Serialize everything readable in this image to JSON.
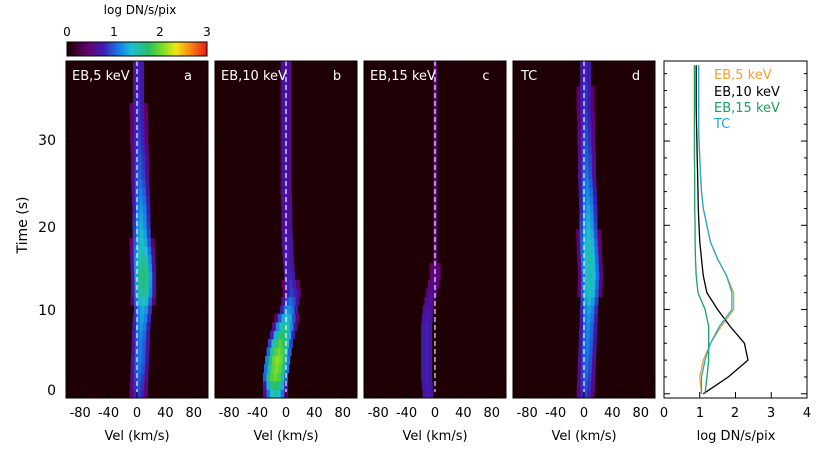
{
  "colorbar": {
    "label": "log DN/s/pix",
    "ticks": [
      "0",
      "1",
      "2",
      "3"
    ],
    "range": [
      0,
      3
    ]
  },
  "y_axis": {
    "label": "Time (s)",
    "ticks": [
      "0",
      "10",
      "20",
      "30"
    ],
    "range": [
      -0.5,
      39.5
    ]
  },
  "panels": [
    {
      "id": "a",
      "title": "EB,5 keV",
      "letter": "a",
      "xlabel": "Vel (km/s)"
    },
    {
      "id": "b",
      "title": "EB,10 keV",
      "letter": "b",
      "xlabel": "Vel (km/s)"
    },
    {
      "id": "c",
      "title": "EB,15 keV",
      "letter": "c",
      "xlabel": "Vel (km/s)"
    },
    {
      "id": "d",
      "title": "TC",
      "letter": "d",
      "xlabel": "Vel (km/s)"
    }
  ],
  "vel_ticks": [
    "-80",
    "-40",
    "0",
    "40",
    "80"
  ],
  "vel_range": [
    -100,
    100
  ],
  "line_panel": {
    "xlabel": "log DN/s/pix",
    "xticks": [
      "0",
      "1",
      "2",
      "3",
      "4"
    ],
    "xrange": [
      0,
      4
    ],
    "legend": [
      {
        "name": "EB,5 keV",
        "color": "#f0a030"
      },
      {
        "name": "EB,10 keV",
        "color": "#000000"
      },
      {
        "name": "EB,15 keV",
        "color": "#1aa060"
      },
      {
        "name": "TC",
        "color": "#20a8d8"
      }
    ]
  },
  "chart_data": [
    {
      "type": "heatmap",
      "title": "EB,5 keV",
      "xlabel": "Vel (km/s)",
      "ylabel": "Time (s)",
      "xlim": [
        -100,
        100
      ],
      "ylim": [
        0,
        39
      ],
      "colorbar_label": "log DN/s/pix",
      "colorbar_range": [
        0,
        3
      ],
      "time": [
        0,
        2,
        4,
        6,
        8,
        10,
        12,
        14,
        16,
        18,
        20,
        22,
        24,
        26,
        28,
        30,
        32,
        34,
        36,
        38
      ],
      "peak_velocity_kms": [
        2,
        3,
        4,
        5,
        6,
        8,
        9,
        9,
        8,
        7,
        6,
        6,
        5,
        4,
        4,
        3,
        3,
        2,
        2,
        2
      ],
      "peak_log_intensity": [
        0.9,
        1.0,
        1.1,
        1.1,
        1.2,
        1.3,
        1.6,
        1.7,
        1.6,
        1.4,
        1.3,
        1.2,
        1.1,
        1.0,
        0.95,
        0.9,
        0.85,
        0.85,
        0.8,
        0.8
      ]
    },
    {
      "type": "heatmap",
      "title": "EB,10 keV",
      "xlabel": "Vel (km/s)",
      "ylabel": "Time (s)",
      "xlim": [
        -100,
        100
      ],
      "ylim": [
        0,
        39
      ],
      "colorbar_label": "log DN/s/pix",
      "colorbar_range": [
        0,
        3
      ],
      "time": [
        0,
        2,
        4,
        6,
        8,
        10,
        12,
        14,
        16,
        18,
        20,
        22,
        24,
        26,
        28,
        30,
        32,
        34,
        36,
        38
      ],
      "peak_velocity_kms": [
        -15,
        -15,
        -12,
        -8,
        -2,
        4,
        8,
        5,
        3,
        2,
        1,
        1,
        0,
        0,
        0,
        0,
        0,
        0,
        0,
        0
      ],
      "peak_log_intensity": [
        1.5,
        2.0,
        2.1,
        1.9,
        1.6,
        1.2,
        0.9,
        0.8,
        0.75,
        0.75,
        0.7,
        0.7,
        0.7,
        0.7,
        0.7,
        0.7,
        0.7,
        0.7,
        0.7,
        0.7
      ]
    },
    {
      "type": "heatmap",
      "title": "EB,15 keV",
      "xlabel": "Vel (km/s)",
      "ylabel": "Time (s)",
      "xlim": [
        -100,
        100
      ],
      "ylim": [
        0,
        39
      ],
      "colorbar_label": "log DN/s/pix",
      "colorbar_range": [
        0,
        3
      ],
      "time": [
        0,
        2,
        4,
        6,
        8,
        10,
        12,
        14,
        16,
        18,
        20,
        22,
        24,
        26,
        28,
        30,
        32,
        34,
        36,
        38
      ],
      "peak_velocity_kms": [
        -10,
        -12,
        -12,
        -12,
        -12,
        -10,
        -5,
        0,
        0,
        0,
        0,
        0,
        0,
        0,
        0,
        0,
        0,
        0,
        0,
        0
      ],
      "peak_log_intensity": [
        0.75,
        0.8,
        0.8,
        0.8,
        0.8,
        0.7,
        0.6,
        0.55,
        0.5,
        0.5,
        0.5,
        0.5,
        0.5,
        0.5,
        0.5,
        0.5,
        0.5,
        0.5,
        0.5,
        0.5
      ]
    },
    {
      "type": "heatmap",
      "title": "TC",
      "xlabel": "Vel (km/s)",
      "ylabel": "Time (s)",
      "xlim": [
        -100,
        100
      ],
      "ylim": [
        0,
        39
      ],
      "colorbar_label": "log DN/s/pix",
      "colorbar_range": [
        0,
        3
      ],
      "time": [
        0,
        2,
        4,
        6,
        8,
        10,
        12,
        14,
        16,
        18,
        20,
        22,
        24,
        26,
        28,
        30,
        32,
        34,
        36,
        38
      ],
      "peak_velocity_kms": [
        2,
        3,
        4,
        5,
        6,
        7,
        8,
        9,
        8,
        7,
        6,
        6,
        5,
        4,
        4,
        3,
        3,
        2,
        2,
        2
      ],
      "peak_log_intensity": [
        0.9,
        1.0,
        1.05,
        1.1,
        1.15,
        1.25,
        1.45,
        1.5,
        1.5,
        1.45,
        1.35,
        1.25,
        1.15,
        1.05,
        1.0,
        0.95,
        0.9,
        0.85,
        0.85,
        0.8
      ]
    },
    {
      "type": "line",
      "xlabel": "log DN/s/pix",
      "ylabel": "Time (s)",
      "xlim": [
        0,
        4
      ],
      "ylim": [
        0,
        39
      ],
      "series": [
        {
          "name": "EB,5 keV",
          "x": [
            1.05,
            1.0,
            1.1,
            1.3,
            1.6,
            1.95,
            1.95,
            1.75,
            1.5,
            1.3,
            1.2,
            1.1,
            1.05,
            1.02,
            1.0,
            0.98,
            0.97,
            0.97,
            0.97,
            0.97
          ],
          "y": [
            0,
            2,
            4,
            6,
            8,
            10,
            12,
            14,
            16,
            18,
            20,
            22,
            24,
            26,
            28,
            30,
            32,
            34,
            36,
            39
          ]
        },
        {
          "name": "EB,10 keV",
          "x": [
            1.1,
            1.8,
            2.35,
            2.25,
            1.85,
            1.5,
            1.2,
            1.1,
            1.05,
            1.0,
            0.98,
            0.96,
            0.95,
            0.94,
            0.93,
            0.92,
            0.91,
            0.9,
            0.9,
            0.9
          ],
          "y": [
            0,
            2,
            4,
            6,
            8,
            10,
            12,
            14,
            16,
            18,
            20,
            22,
            24,
            26,
            28,
            30,
            32,
            34,
            36,
            39
          ]
        },
        {
          "name": "EB,15 keV",
          "x": [
            1.15,
            1.2,
            1.25,
            1.25,
            1.25,
            1.15,
            0.95,
            0.9,
            0.88,
            0.87,
            0.87,
            0.86,
            0.86,
            0.86,
            0.85,
            0.85,
            0.85,
            0.85,
            0.85,
            0.85
          ],
          "y": [
            0,
            2,
            4,
            6,
            8,
            10,
            12,
            14,
            16,
            18,
            20,
            22,
            24,
            26,
            28,
            30,
            32,
            34,
            36,
            39
          ]
        },
        {
          "name": "TC",
          "x": [
            1.05,
            1.05,
            1.15,
            1.3,
            1.55,
            1.9,
            1.9,
            1.75,
            1.5,
            1.3,
            1.2,
            1.1,
            1.05,
            1.02,
            1.0,
            0.98,
            0.97,
            0.97,
            0.97,
            0.97
          ],
          "y": [
            0,
            2,
            4,
            6,
            8,
            10,
            12,
            14,
            16,
            18,
            20,
            22,
            24,
            26,
            28,
            30,
            32,
            34,
            36,
            39
          ]
        }
      ]
    }
  ]
}
